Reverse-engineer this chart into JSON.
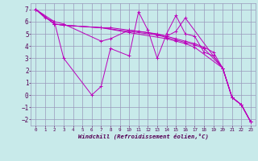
{
  "xlabel": "Windchill (Refroidissement éolien,°C)",
  "background_color": "#c8eaea",
  "grid_color": "#9999bb",
  "line_color": "#bb00bb",
  "xlim": [
    -0.5,
    23.5
  ],
  "ylim": [
    -2.5,
    7.5
  ],
  "xticks": [
    0,
    1,
    2,
    3,
    4,
    5,
    6,
    7,
    8,
    9,
    10,
    11,
    12,
    13,
    14,
    15,
    16,
    17,
    18,
    19,
    20,
    21,
    22,
    23
  ],
  "yticks": [
    -2,
    -1,
    0,
    1,
    2,
    3,
    4,
    5,
    6,
    7
  ],
  "line1_x": [
    0,
    1,
    2,
    3,
    6,
    7,
    8,
    10,
    11,
    12,
    13,
    14,
    15,
    16,
    17,
    18,
    19,
    20,
    21,
    22,
    23
  ],
  "line1_y": [
    7,
    6.3,
    6.0,
    3.0,
    0.0,
    0.7,
    3.8,
    3.2,
    6.8,
    5.3,
    3.0,
    5.0,
    6.5,
    5.0,
    4.8,
    3.5,
    3.2,
    2.2,
    -0.2,
    -0.8,
    -2.2
  ],
  "line2_x": [
    0,
    2,
    3,
    7,
    8,
    10,
    11,
    13,
    14,
    15,
    16,
    19,
    20,
    21,
    22,
    23
  ],
  "line2_y": [
    7,
    6.0,
    5.8,
    4.4,
    4.6,
    5.3,
    5.2,
    5.0,
    4.8,
    5.2,
    6.3,
    3.2,
    2.2,
    -0.2,
    -0.8,
    -2.2
  ],
  "line3_x": [
    0,
    2,
    3,
    7,
    8,
    10,
    12,
    14,
    15,
    16,
    17,
    18,
    19,
    20,
    21,
    22,
    23
  ],
  "line3_y": [
    7,
    5.8,
    5.7,
    5.5,
    5.5,
    5.3,
    5.1,
    4.8,
    4.6,
    4.4,
    4.2,
    3.9,
    3.5,
    2.2,
    -0.2,
    -0.8,
    -2.2
  ],
  "line4_x": [
    0,
    2,
    3,
    7,
    10,
    13,
    14,
    15,
    16,
    17,
    18,
    20,
    21,
    22,
    23
  ],
  "line4_y": [
    7,
    5.8,
    5.7,
    5.5,
    5.2,
    4.9,
    4.7,
    4.5,
    4.3,
    4.1,
    3.8,
    2.2,
    -0.2,
    -0.8,
    -2.2
  ],
  "line5_x": [
    0,
    2,
    3,
    7,
    10,
    14,
    15,
    16,
    17,
    20,
    21,
    22,
    23
  ],
  "line5_y": [
    7,
    5.8,
    5.7,
    5.5,
    5.1,
    4.6,
    4.4,
    4.2,
    3.9,
    2.2,
    -0.2,
    -0.8,
    -2.2
  ]
}
